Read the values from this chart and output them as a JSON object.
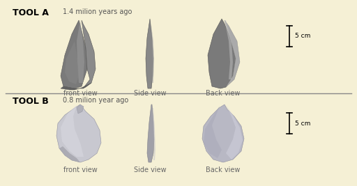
{
  "background_color": "#f5f0d5",
  "tool_a_label": "TOOL A",
  "tool_a_date": "1.4 milion years ago",
  "tool_b_label": "TOOL B",
  "tool_b_date": "0.8 milion year ago",
  "view_labels": [
    "front view",
    "Side view",
    "Back view"
  ],
  "scale_label": "5 cm",
  "tool_a_base_color": "#7a7a7a",
  "tool_a_highlight": "#aaaaaa",
  "tool_a_shadow": "#555555",
  "tool_b_base_color": "#c0c0c8",
  "tool_b_highlight": "#d8d8e0",
  "tool_b_shadow": "#909098",
  "label_fontsize": 7,
  "title_fontsize": 9,
  "date_fontsize": 7
}
